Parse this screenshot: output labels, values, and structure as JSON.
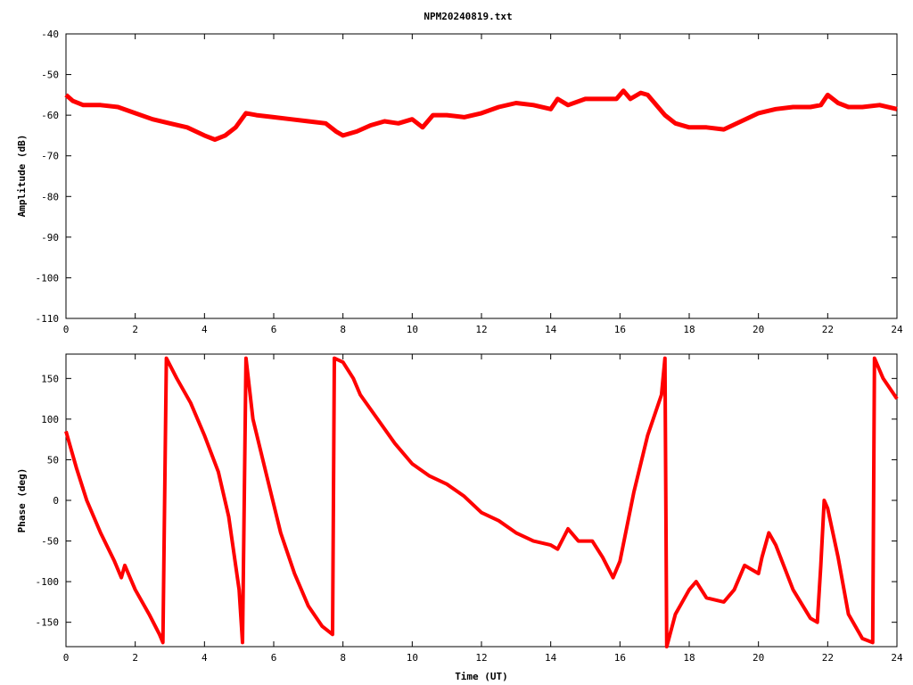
{
  "title": "NPM20240819.txt",
  "chart_data": [
    {
      "type": "line",
      "ylabel": "Amplitude (dB)",
      "xlabel": "",
      "xlim": [
        0,
        24
      ],
      "ylim": [
        -110,
        -40
      ],
      "xticks": [
        0,
        2,
        4,
        6,
        8,
        10,
        12,
        14,
        16,
        18,
        20,
        22,
        24
      ],
      "yticks": [
        -40,
        -50,
        -60,
        -70,
        -80,
        -90,
        -100,
        -110
      ],
      "grid": false,
      "color": "#ff0000",
      "series": [
        {
          "x": [
            0,
            0.2,
            0.5,
            1.0,
            1.5,
            2.0,
            2.5,
            3.0,
            3.5,
            4.0,
            4.3,
            4.6,
            4.9,
            5.2,
            5.5,
            6.0,
            6.5,
            7.0,
            7.5,
            7.8,
            8.0,
            8.4,
            8.8,
            9.2,
            9.6,
            10.0,
            10.3,
            10.6,
            11.0,
            11.5,
            12.0,
            12.5,
            13.0,
            13.5,
            14.0,
            14.2,
            14.5,
            15.0,
            15.5,
            15.9,
            16.1,
            16.3,
            16.6,
            16.8,
            17.0,
            17.3,
            17.6,
            18.0,
            18.5,
            19.0,
            19.5,
            20.0,
            20.5,
            21.0,
            21.5,
            21.8,
            22.0,
            22.3,
            22.6,
            23.0,
            23.5,
            24.0
          ],
          "y": [
            -55,
            -56.5,
            -57.5,
            -57.5,
            -58,
            -59.5,
            -61,
            -62,
            -63,
            -65,
            -66,
            -65,
            -63,
            -59.5,
            -60,
            -60.5,
            -61,
            -61.5,
            -62,
            -64,
            -65,
            -64,
            -62.5,
            -61.5,
            -62,
            -61,
            -63,
            -60,
            -60,
            -60.5,
            -59.5,
            -58,
            -57,
            -57.5,
            -58.5,
            -56,
            -57.5,
            -56,
            -56,
            -56,
            -54,
            -56,
            -54.5,
            -55,
            -57,
            -60,
            -62,
            -63,
            -63,
            -63.5,
            -61.5,
            -59.5,
            -58.5,
            -58,
            -58,
            -57.5,
            -55,
            -57,
            -58,
            -58,
            -57.5,
            -58.5
          ]
        }
      ]
    },
    {
      "type": "line",
      "ylabel": "Phase (deg)",
      "xlabel": "Time (UT)",
      "xlim": [
        0,
        24
      ],
      "ylim": [
        -180,
        180
      ],
      "xticks": [
        0,
        2,
        4,
        6,
        8,
        10,
        12,
        14,
        16,
        18,
        20,
        22,
        24
      ],
      "yticks": [
        150,
        100,
        50,
        0,
        -50,
        -100,
        -150
      ],
      "grid": false,
      "color": "#ff0000",
      "series": [
        {
          "x": [
            0,
            0.3,
            0.6,
            1.0,
            1.4,
            1.6,
            1.7,
            2.0,
            2.4,
            2.7,
            2.8,
            2.9,
            3.2,
            3.6,
            4.0,
            4.4,
            4.7,
            5.0,
            5.1,
            5.2,
            5.4,
            5.8,
            6.2,
            6.6,
            7.0,
            7.4,
            7.7,
            7.75,
            8.0,
            8.3,
            8.5,
            9.0,
            9.5,
            10.0,
            10.5,
            11.0,
            11.5,
            12.0,
            12.5,
            13.0,
            13.5,
            14.0,
            14.2,
            14.5,
            14.8,
            15.2,
            15.5,
            15.8,
            16.0,
            16.4,
            16.8,
            17.2,
            17.3,
            17.35,
            17.6,
            18.0,
            18.2,
            18.5,
            19.0,
            19.3,
            19.6,
            20.0,
            20.1,
            20.3,
            20.5,
            21.0,
            21.5,
            21.7,
            21.8,
            21.9,
            22.0,
            22.3,
            22.6,
            23.0,
            23.3,
            23.35,
            23.6,
            24.0
          ],
          "y": [
            85,
            40,
            0,
            -40,
            -75,
            -95,
            -80,
            -110,
            -140,
            -165,
            -175,
            175,
            150,
            120,
            80,
            35,
            -20,
            -110,
            -175,
            175,
            100,
            30,
            -40,
            -90,
            -130,
            -155,
            -165,
            175,
            170,
            150,
            130,
            100,
            70,
            45,
            30,
            20,
            5,
            -15,
            -25,
            -40,
            -50,
            -55,
            -60,
            -35,
            -50,
            -50,
            -70,
            -95,
            -75,
            10,
            80,
            130,
            175,
            -180,
            -140,
            -110,
            -100,
            -120,
            -125,
            -110,
            -80,
            -90,
            -70,
            -40,
            -55,
            -110,
            -145,
            -150,
            -80,
            0,
            -10,
            -70,
            -140,
            -170,
            -175,
            175,
            150,
            125
          ]
        }
      ]
    }
  ]
}
